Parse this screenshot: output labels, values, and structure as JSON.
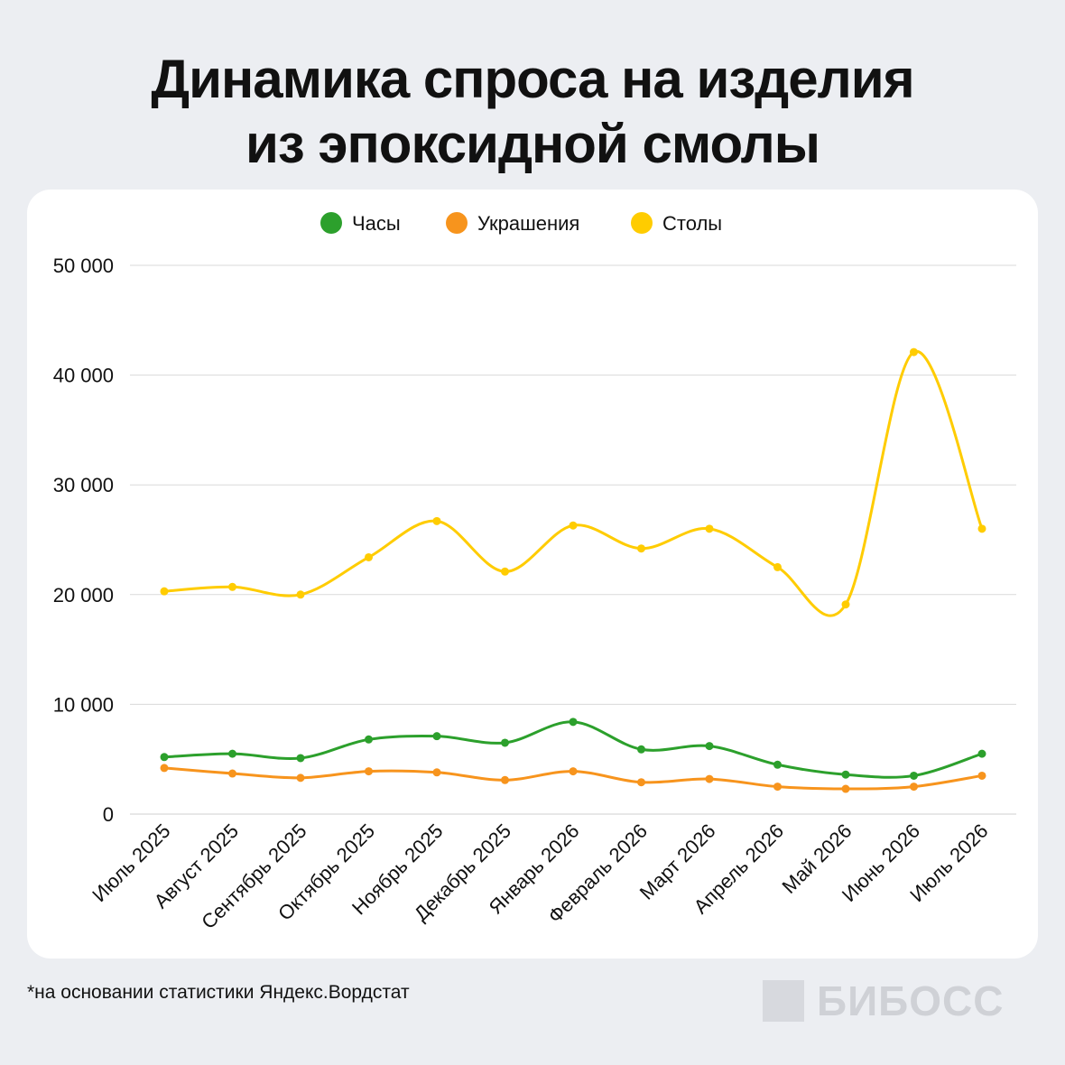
{
  "title": {
    "line1": "Динамика спроса на изделия",
    "line2": "из эпоксидной смолы"
  },
  "chart_data": {
    "type": "line",
    "categories": [
      "Июль 2025",
      "Август 2025",
      "Сентябрь 2025",
      "Октябрь 2025",
      "Ноябрь 2025",
      "Декабрь 2025",
      "Январь 2026",
      "Февраль 2026",
      "Март 2026",
      "Апрель 2026",
      "Май 2026",
      "Июнь 2026",
      "Июль 2026"
    ],
    "series": [
      {
        "name": "Часы",
        "color": "#2ca02c",
        "values": [
          5200,
          5500,
          5100,
          6800,
          7100,
          6500,
          8400,
          5900,
          6200,
          4500,
          3600,
          3500,
          5500
        ]
      },
      {
        "name": "Украшения",
        "color": "#f7941d",
        "values": [
          4200,
          3700,
          3300,
          3900,
          3800,
          3100,
          3900,
          2900,
          3200,
          2500,
          2300,
          2500,
          3500
        ]
      },
      {
        "name": "Столы",
        "color": "#ffcc00",
        "values": [
          20300,
          20700,
          20000,
          23400,
          26700,
          22100,
          26300,
          24200,
          26000,
          22500,
          19100,
          42100,
          26000
        ]
      }
    ],
    "y_ticks": [
      "0",
      "10 000",
      "20 000",
      "30 000",
      "40 000",
      "50 000"
    ],
    "ylim": [
      0,
      50000
    ],
    "grid": true,
    "legend": "top-center"
  },
  "footnote": "*на основании статистики Яндекс.Вордстат",
  "brand": "БИБОСС"
}
